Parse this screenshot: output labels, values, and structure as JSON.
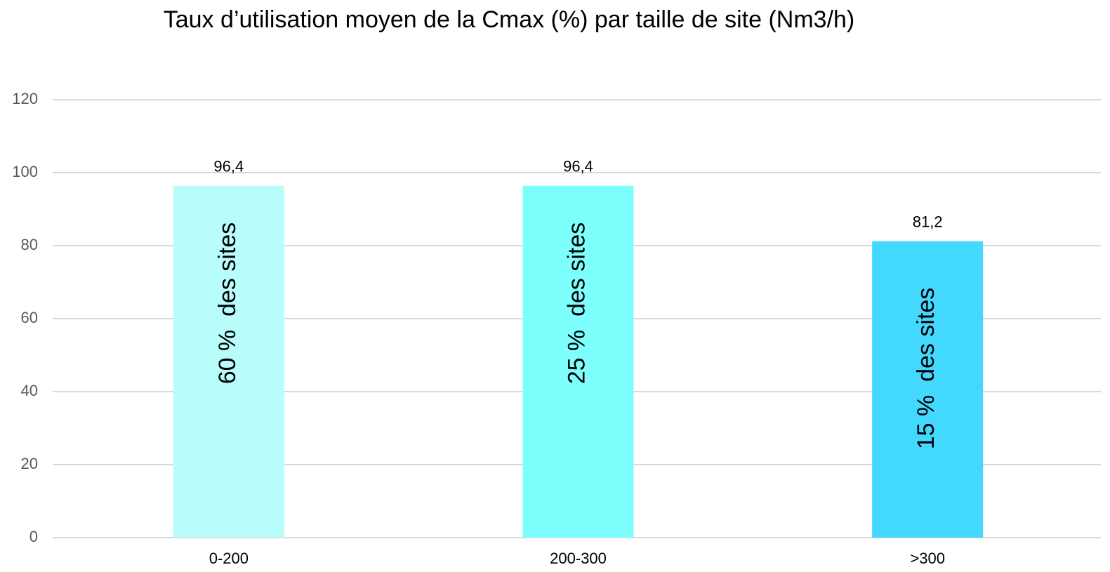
{
  "chart_data": {
    "type": "bar",
    "title": "Taux d’utilisation moyen de la Cmax (%) par taille de site (Nm3/h)",
    "categories": [
      "0-200",
      "200-300",
      ">300"
    ],
    "values": [
      96.4,
      96.4,
      81.2
    ],
    "value_labels": [
      "96,4",
      "96,4",
      "81,2"
    ],
    "colors": [
      "#b8fcfc",
      "#7cfffd",
      "#43d8fe"
    ],
    "annotations": [
      "60 %  des sites",
      "25 %  des sites",
      "15 %  des sites"
    ],
    "ylim": [
      0,
      120
    ],
    "yticks": [
      0,
      20,
      40,
      60,
      80,
      100,
      120
    ],
    "grid": true
  }
}
